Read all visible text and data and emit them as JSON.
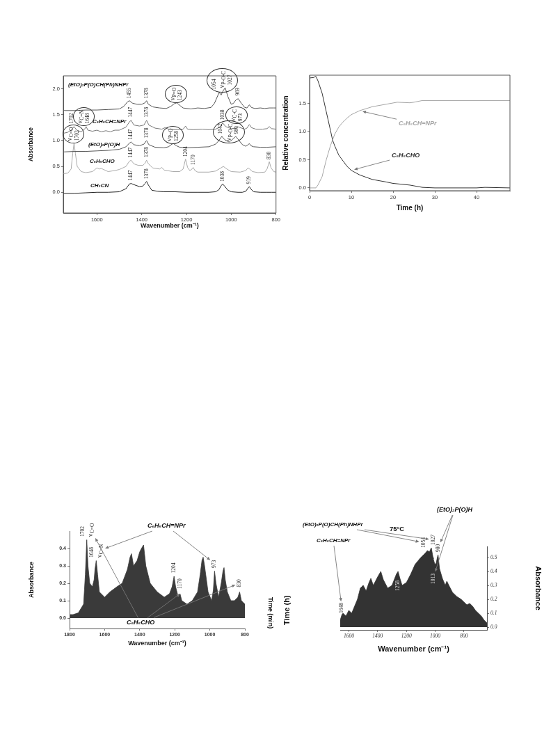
{
  "chart_data": [
    {
      "type": "line",
      "xlabel": "Wavenumber (cm⁻¹)",
      "ylabel": "Absorbance",
      "xlim": [
        1750,
        800
      ],
      "xticks": [
        1600,
        1400,
        1200,
        1000,
        800
      ],
      "ylim": [
        -0.4,
        2.25
      ],
      "yticks": [
        {
          "value": 0,
          "label": "0.0"
        },
        0.5,
        {
          "value": 1,
          "label": "1.0"
        },
        1.5,
        {
          "value": 2,
          "label": "2.0"
        }
      ],
      "series": [
        {
          "name": "(EtO)₂P(O)CH(Ph)NHPr",
          "color": "#555555",
          "x": [
            1750,
            1700,
            1650,
            1600,
            1550,
            1500,
            1480,
            1465,
            1455,
            1440,
            1420,
            1400,
            1385,
            1378,
            1370,
            1350,
            1320,
            1290,
            1270,
            1255,
            1243,
            1230,
            1215,
            1200,
            1180,
            1150,
            1120,
            1090,
            1075,
            1065,
            1054,
            1045,
            1038,
            1027,
            1015,
            1000,
            990,
            980,
            969,
            955,
            940,
            930,
            919,
            910,
            895,
            870,
            850,
            830,
            810,
            800
          ],
          "values": [
            1.58,
            1.58,
            1.59,
            1.59,
            1.6,
            1.61,
            1.66,
            1.74,
            1.77,
            1.72,
            1.7,
            1.7,
            1.73,
            1.77,
            1.7,
            1.65,
            1.63,
            1.62,
            1.66,
            1.71,
            1.73,
            1.68,
            1.63,
            1.62,
            1.61,
            1.63,
            1.62,
            1.64,
            1.72,
            1.82,
            1.93,
            1.88,
            1.95,
            2.02,
            1.85,
            1.7,
            1.72,
            1.78,
            1.81,
            1.72,
            1.64,
            1.63,
            1.69,
            1.64,
            1.62,
            1.63,
            1.62,
            1.63,
            1.63,
            1.63
          ]
        },
        {
          "name": "C₆H₅CH=NPr",
          "color": "#777777",
          "x": [
            1750,
            1730,
            1715,
            1702,
            1690,
            1670,
            1655,
            1648,
            1640,
            1620,
            1600,
            1580,
            1560,
            1540,
            1520,
            1500,
            1470,
            1455,
            1447,
            1435,
            1410,
            1390,
            1378,
            1368,
            1340,
            1310,
            1295,
            1280,
            1250,
            1215,
            1204,
            1195,
            1170,
            1130,
            1100,
            1070,
            1050,
            1038,
            1025,
            1000,
            980,
            973,
            940,
            930,
            919,
            910,
            890,
            860,
            840,
            830,
            820,
            800
          ],
          "values": [
            1.14,
            1.16,
            1.2,
            1.27,
            1.2,
            1.17,
            1.22,
            1.27,
            1.2,
            1.18,
            1.2,
            1.17,
            1.19,
            1.17,
            1.2,
            1.2,
            1.26,
            1.36,
            1.39,
            1.3,
            1.28,
            1.3,
            1.39,
            1.3,
            1.24,
            1.22,
            1.25,
            1.22,
            1.21,
            1.22,
            1.28,
            1.22,
            1.21,
            1.22,
            1.21,
            1.22,
            1.26,
            1.34,
            1.27,
            1.23,
            1.24,
            1.27,
            1.22,
            1.24,
            1.31,
            1.25,
            1.22,
            1.22,
            1.23,
            1.27,
            1.23,
            1.22
          ]
        },
        {
          "name": "(EtO)₂P(O)H",
          "color": "#555555",
          "x": [
            1750,
            1700,
            1650,
            1600,
            1550,
            1500,
            1470,
            1455,
            1447,
            1435,
            1410,
            1390,
            1378,
            1368,
            1340,
            1300,
            1280,
            1265,
            1258,
            1245,
            1230,
            1200,
            1150,
            1100,
            1070,
            1055,
            1042,
            1030,
            1010,
            995,
            980,
            965,
            950,
            935,
            925,
            919,
            912,
            900,
            870,
            840,
            800
          ],
          "values": [
            0.78,
            0.79,
            0.79,
            0.8,
            0.81,
            0.83,
            0.88,
            0.95,
            0.97,
            0.92,
            0.9,
            0.93,
            1.0,
            0.92,
            0.87,
            0.86,
            0.88,
            0.93,
            0.94,
            0.9,
            0.87,
            0.86,
            0.87,
            0.88,
            0.93,
            1.0,
            1.08,
            1.02,
            0.97,
            1.02,
            1.08,
            1.0,
            0.92,
            0.89,
            0.92,
            0.94,
            0.9,
            0.88,
            0.87,
            0.87,
            0.88
          ]
        },
        {
          "name": "C₆H₅CHO",
          "color": "#aaaaaa",
          "x": [
            1750,
            1730,
            1715,
            1708,
            1702,
            1696,
            1688,
            1670,
            1650,
            1620,
            1600,
            1590,
            1580,
            1550,
            1520,
            1500,
            1470,
            1455,
            1447,
            1435,
            1415,
            1395,
            1385,
            1378,
            1370,
            1350,
            1320,
            1310,
            1300,
            1260,
            1230,
            1215,
            1204,
            1195,
            1185,
            1175,
            1170,
            1162,
            1150,
            1100,
            1070,
            1050,
            1035,
            1020,
            1000,
            960,
            935,
            925,
            918,
            905,
            880,
            850,
            840,
            830,
            822,
            810,
            800
          ],
          "values": [
            0.36,
            0.37,
            0.45,
            0.75,
            0.95,
            0.75,
            0.5,
            0.4,
            0.38,
            0.4,
            0.47,
            0.45,
            0.46,
            0.4,
            0.42,
            0.44,
            0.5,
            0.6,
            0.62,
            0.55,
            0.52,
            0.52,
            0.56,
            0.62,
            0.55,
            0.47,
            0.45,
            0.48,
            0.43,
            0.4,
            0.4,
            0.45,
            0.64,
            0.48,
            0.42,
            0.45,
            0.48,
            0.42,
            0.39,
            0.39,
            0.41,
            0.46,
            0.5,
            0.45,
            0.4,
            0.39,
            0.42,
            0.47,
            0.45,
            0.4,
            0.38,
            0.39,
            0.45,
            0.59,
            0.47,
            0.4,
            0.39
          ]
        },
        {
          "name": "CH₃CN",
          "color": "#222222",
          "x": [
            1750,
            1700,
            1650,
            1600,
            1550,
            1500,
            1470,
            1455,
            1447,
            1430,
            1410,
            1395,
            1385,
            1378,
            1370,
            1355,
            1330,
            1300,
            1250,
            1200,
            1150,
            1100,
            1070,
            1055,
            1045,
            1038,
            1030,
            1015,
            1000,
            970,
            950,
            935,
            925,
            919,
            912,
            900,
            870,
            840,
            820,
            800
          ],
          "values": [
            -0.02,
            -0.02,
            -0.01,
            0,
            0,
            0.01,
            0.07,
            0.16,
            0.17,
            0.14,
            0.11,
            0.12,
            0.17,
            0.21,
            0.14,
            0.04,
            0.02,
            0.01,
            0.01,
            0,
            0,
            0,
            0.01,
            0.05,
            0.13,
            0.16,
            0.12,
            0.04,
            0.01,
            0,
            0,
            0.02,
            0.08,
            0.11,
            0.06,
            0.01,
            0,
            0,
            0,
            0
          ]
        }
      ],
      "annotations": [
        {
          "text": "1455",
          "x": 1455,
          "y": 1.79
        },
        {
          "text": "1378",
          "x": 1378,
          "y": 1.79
        },
        {
          "text": "ν$_{P=O}$",
          "x": 1243,
          "y": 1.75
        },
        {
          "text": "1243",
          "x": 1243,
          "y": 1.75
        },
        {
          "text": "1054",
          "x": 1054,
          "y": 1.96
        },
        {
          "text": "ν$_{P-O-C}$",
          "x": 1040,
          "y": 1.99
        },
        {
          "text": "1027",
          "x": 1027,
          "y": 2.04
        },
        {
          "text": "969",
          "x": 969,
          "y": 1.84
        },
        {
          "text": "1702",
          "x": 1702,
          "y": 1.3
        },
        {
          "text": "ν$_{C=N}$",
          "x": 1648,
          "y": 1.3
        },
        {
          "text": "1648",
          "x": 1648,
          "y": 1.3
        },
        {
          "text": "1447",
          "x": 1447,
          "y": 1.42
        },
        {
          "text": "1378",
          "x": 1378,
          "y": 1.42
        },
        {
          "text": "1038",
          "x": 1038,
          "y": 1.37
        },
        {
          "text": "ν$_{C-C}$",
          "x": 973,
          "y": 1.29
        },
        {
          "text": "973",
          "x": 973,
          "y": 1.29
        },
        {
          "text": "ν$_{C=O}$",
          "x": 1702,
          "y": 0.97
        },
        {
          "text": "1702",
          "x": 1702,
          "y": 0.97
        },
        {
          "text": "1447",
          "x": 1447,
          "y": 0.99
        },
        {
          "text": "1378",
          "x": 1378,
          "y": 1.02
        },
        {
          "text": "ν$_{P=O}$",
          "x": 1258,
          "y": 0.96
        },
        {
          "text": "1258",
          "x": 1258,
          "y": 0.96
        },
        {
          "text": "1042",
          "x": 1042,
          "y": 1.1
        },
        {
          "text": "ν$_{P-O-C}$",
          "x": 1010,
          "y": 0.97
        },
        {
          "text": "980",
          "x": 980,
          "y": 1.1
        },
        {
          "text": "1447",
          "x": 1447,
          "y": 0.64
        },
        {
          "text": "1378",
          "x": 1378,
          "y": 0.65
        },
        {
          "text": "1204",
          "x": 1204,
          "y": 0.66
        },
        {
          "text": "1170",
          "x": 1170,
          "y": 0.5
        },
        {
          "text": "830",
          "x": 830,
          "y": 0.61
        },
        {
          "text": "1447",
          "x": 1447,
          "y": 0.2
        },
        {
          "text": "1378",
          "x": 1378,
          "y": 0.23
        },
        {
          "text": "1038",
          "x": 1038,
          "y": 0.18
        },
        {
          "text": "919",
          "x": 919,
          "y": 0.13
        }
      ]
    },
    {
      "type": "line",
      "xlabel": "Time (h)",
      "ylabel": "Relative concentration",
      "xlim": [
        0,
        48
      ],
      "xticks": [
        0,
        10,
        20,
        30,
        40
      ],
      "ylim": [
        -0.05,
        2
      ],
      "yticks": [
        {
          "value": 0,
          "label": "0.0"
        },
        0.5,
        {
          "value": 1,
          "label": "1.0"
        },
        1.5
      ],
      "series": [
        {
          "name": "C₆H₅CH=NPr",
          "color": "#a6a6a6",
          "x": [
            0,
            1,
            1.5,
            2,
            3,
            4,
            5,
            5.5,
            6,
            7,
            8,
            9,
            10,
            12,
            15,
            18,
            21,
            24,
            25,
            27,
            30,
            35,
            40,
            48
          ],
          "values": [
            0,
            0,
            0,
            0.05,
            0.2,
            0.5,
            0.75,
            0.85,
            0.95,
            1.08,
            1.17,
            1.24,
            1.3,
            1.37,
            1.44,
            1.48,
            1.52,
            1.51,
            1.52,
            1.55,
            1.55,
            1.55,
            1.55,
            1.55
          ]
        },
        {
          "name": "C₆H₅CHO",
          "color": "#333333",
          "x": [
            0,
            1,
            1.5,
            2,
            3,
            4,
            5,
            5.5,
            6,
            7,
            8,
            9,
            10,
            12,
            15,
            18,
            20,
            24,
            27,
            30,
            35,
            40,
            42,
            48
          ],
          "values": [
            1.95,
            1.96,
            1.98,
            1.9,
            1.68,
            1.35,
            1.02,
            0.85,
            0.75,
            0.58,
            0.48,
            0.38,
            0.31,
            0.23,
            0.15,
            0.11,
            0.08,
            0.05,
            0.01,
            0,
            0,
            0,
            0.01,
            0
          ]
        }
      ]
    },
    {
      "type": "area",
      "xlabel": "Wavenumber (cm⁻¹)",
      "ylabel": "Absorbance",
      "xlim": [
        1800,
        800
      ],
      "xticks": [
        1800,
        1600,
        1400,
        1200,
        1000,
        800
      ],
      "ylim": [
        -0.06,
        0.5
      ],
      "yticks": [
        {
          "value": 0,
          "label": "0.0"
        },
        0.1,
        0.2,
        0.3,
        0.4
      ],
      "color": "#3a3a3a",
      "x": [
        1800,
        1780,
        1750,
        1720,
        1710,
        1702,
        1695,
        1685,
        1670,
        1660,
        1655,
        1648,
        1640,
        1630,
        1600,
        1570,
        1530,
        1500,
        1470,
        1455,
        1447,
        1435,
        1415,
        1400,
        1390,
        1378,
        1365,
        1340,
        1300,
        1260,
        1230,
        1215,
        1204,
        1195,
        1180,
        1170,
        1160,
        1130,
        1100,
        1070,
        1055,
        1045,
        1038,
        1030,
        1010,
        990,
        980,
        973,
        965,
        950,
        935,
        925,
        919,
        912,
        900,
        880,
        860,
        840,
        830,
        820,
        800
      ],
      "values": [
        0.02,
        0.02,
        0.03,
        0.08,
        0.25,
        0.45,
        0.3,
        0.2,
        0.18,
        0.22,
        0.28,
        0.33,
        0.25,
        0.15,
        0.12,
        0.15,
        0.18,
        0.2,
        0.28,
        0.35,
        0.37,
        0.3,
        0.33,
        0.38,
        0.4,
        0.42,
        0.3,
        0.2,
        0.15,
        0.12,
        0.14,
        0.18,
        0.24,
        0.18,
        0.12,
        0.14,
        0.1,
        0.08,
        0.1,
        0.15,
        0.25,
        0.33,
        0.35,
        0.3,
        0.15,
        0.1,
        0.16,
        0.27,
        0.2,
        0.12,
        0.2,
        0.27,
        0.29,
        0.22,
        0.15,
        0.1,
        0.1,
        0.12,
        0.15,
        0.1,
        0.08
      ],
      "annotations": [
        {
          "text": "1702",
          "x": 1702,
          "y": 0.46
        },
        {
          "text": "ν$_{C=O}$",
          "x": 1702,
          "y": 0.46
        },
        {
          "text": "1648",
          "x": 1648,
          "y": 0.34
        },
        {
          "text": "ν$_{C=N}$",
          "x": 1648,
          "y": 0.34
        },
        {
          "text": "1204",
          "x": 1204,
          "y": 0.25
        },
        {
          "text": "973",
          "x": 973,
          "y": 0.28
        },
        {
          "text": "1170",
          "x": 1170,
          "y": 0.16
        },
        {
          "text": "830",
          "x": 830,
          "y": 0.17
        },
        "C₆H₅CH=NPr",
        {
          "text": "C₆H₅CHO",
          "x": 1170,
          "y": 0.14
        },
        "Time (min)"
      ]
    },
    {
      "type": "area",
      "xlabel": "Wavenumber (cm⁻¹)",
      "ylabel": "Absorbance",
      "xlim": [
        1660,
        640
      ],
      "xticks": [
        1600,
        1400,
        1200,
        1000,
        800
      ],
      "ylim": [
        -0.02,
        0.58
      ],
      "yticks": [
        {
          "value": 0,
          "label": "0.0"
        },
        0.1,
        0.2,
        0.3,
        0.4,
        0.5
      ],
      "color": "#333333",
      "x": [
        1660,
        1648,
        1640,
        1620,
        1600,
        1580,
        1560,
        1540,
        1520,
        1500,
        1480,
        1460,
        1447,
        1430,
        1400,
        1378,
        1360,
        1330,
        1300,
        1270,
        1258,
        1245,
        1230,
        1200,
        1170,
        1140,
        1100,
        1070,
        1054,
        1040,
        1027,
        1015,
        1013,
        1005,
        995,
        985,
        980,
        970,
        950,
        930,
        919,
        905,
        880,
        850,
        820,
        800,
        780,
        760,
        740,
        720,
        700,
        680,
        660,
        640
      ],
      "values": [
        0.05,
        0.09,
        0.1,
        0.08,
        0.12,
        0.1,
        0.15,
        0.2,
        0.28,
        0.3,
        0.26,
        0.32,
        0.35,
        0.3,
        0.36,
        0.4,
        0.34,
        0.28,
        0.3,
        0.38,
        0.4,
        0.35,
        0.3,
        0.32,
        0.38,
        0.45,
        0.5,
        0.53,
        0.55,
        0.54,
        0.57,
        0.5,
        0.49,
        0.46,
        0.45,
        0.5,
        0.52,
        0.42,
        0.35,
        0.3,
        0.33,
        0.3,
        0.25,
        0.22,
        0.2,
        0.18,
        0.16,
        0.17,
        0.15,
        0.12,
        0.1,
        0.08,
        0.05,
        0.03
      ],
      "annotations": [
        "(EtO)₂P(O)CH(Ph)NHPr",
        "C₆H₅CH=NPr",
        "75°C",
        "(EtO)₂P(O)H",
        "Time (h)",
        {
          "text": "1054",
          "x": 1054,
          "y": 0.56
        },
        {
          "text": "1027",
          "x": 1027,
          "y": 0.58
        },
        {
          "text": "980",
          "x": 980,
          "y": 0.53
        },
        {
          "text": "1258",
          "x": 1258,
          "y": 0.4
        },
        {
          "text": "1013",
          "x": 1013,
          "y": 0.49
        },
        {
          "text": "1648",
          "x": 1648,
          "y": 0.09
        }
      ]
    }
  ]
}
